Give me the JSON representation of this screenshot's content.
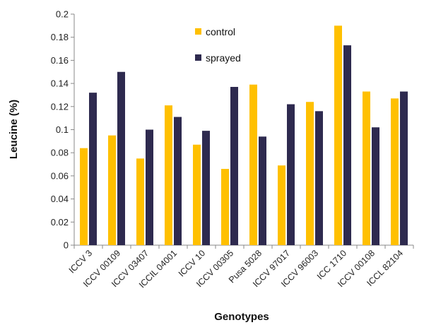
{
  "chart_data": {
    "type": "bar",
    "title": "",
    "xlabel": "Genotypes",
    "ylabel": "Leucine (%)",
    "ylim": [
      0,
      0.2
    ],
    "yticks": [
      0,
      0.02,
      0.04,
      0.06,
      0.08,
      0.1,
      0.12,
      0.14,
      0.16,
      0.18,
      0.2
    ],
    "ytick_labels": [
      "0",
      "0.02",
      "0.04",
      "0.06",
      "0.08",
      "0.1",
      "0.12",
      "0.14",
      "0.16",
      "0.18",
      "0.2"
    ],
    "categories": [
      "ICCV 3",
      "ICCV 00109",
      "ICCV 03407",
      "ICCIL 04001",
      "ICCV 10",
      "ICCV 00305",
      "Pusa 5028",
      "ICCV 97017",
      "ICCV 96003",
      "ICC 1710",
      "ICCV 00108",
      "ICCL 82104"
    ],
    "series": [
      {
        "name": "control",
        "color": "#FFC000",
        "values": [
          0.084,
          0.095,
          0.075,
          0.121,
          0.087,
          0.066,
          0.139,
          0.069,
          0.124,
          0.19,
          0.133,
          0.127
        ]
      },
      {
        "name": "sprayed",
        "color": "#2E2A4F",
        "values": [
          0.132,
          0.15,
          0.1,
          0.111,
          0.099,
          0.137,
          0.094,
          0.122,
          0.116,
          0.173,
          0.102,
          0.133
        ]
      }
    ],
    "grid": false,
    "legend_position": "top-center"
  }
}
